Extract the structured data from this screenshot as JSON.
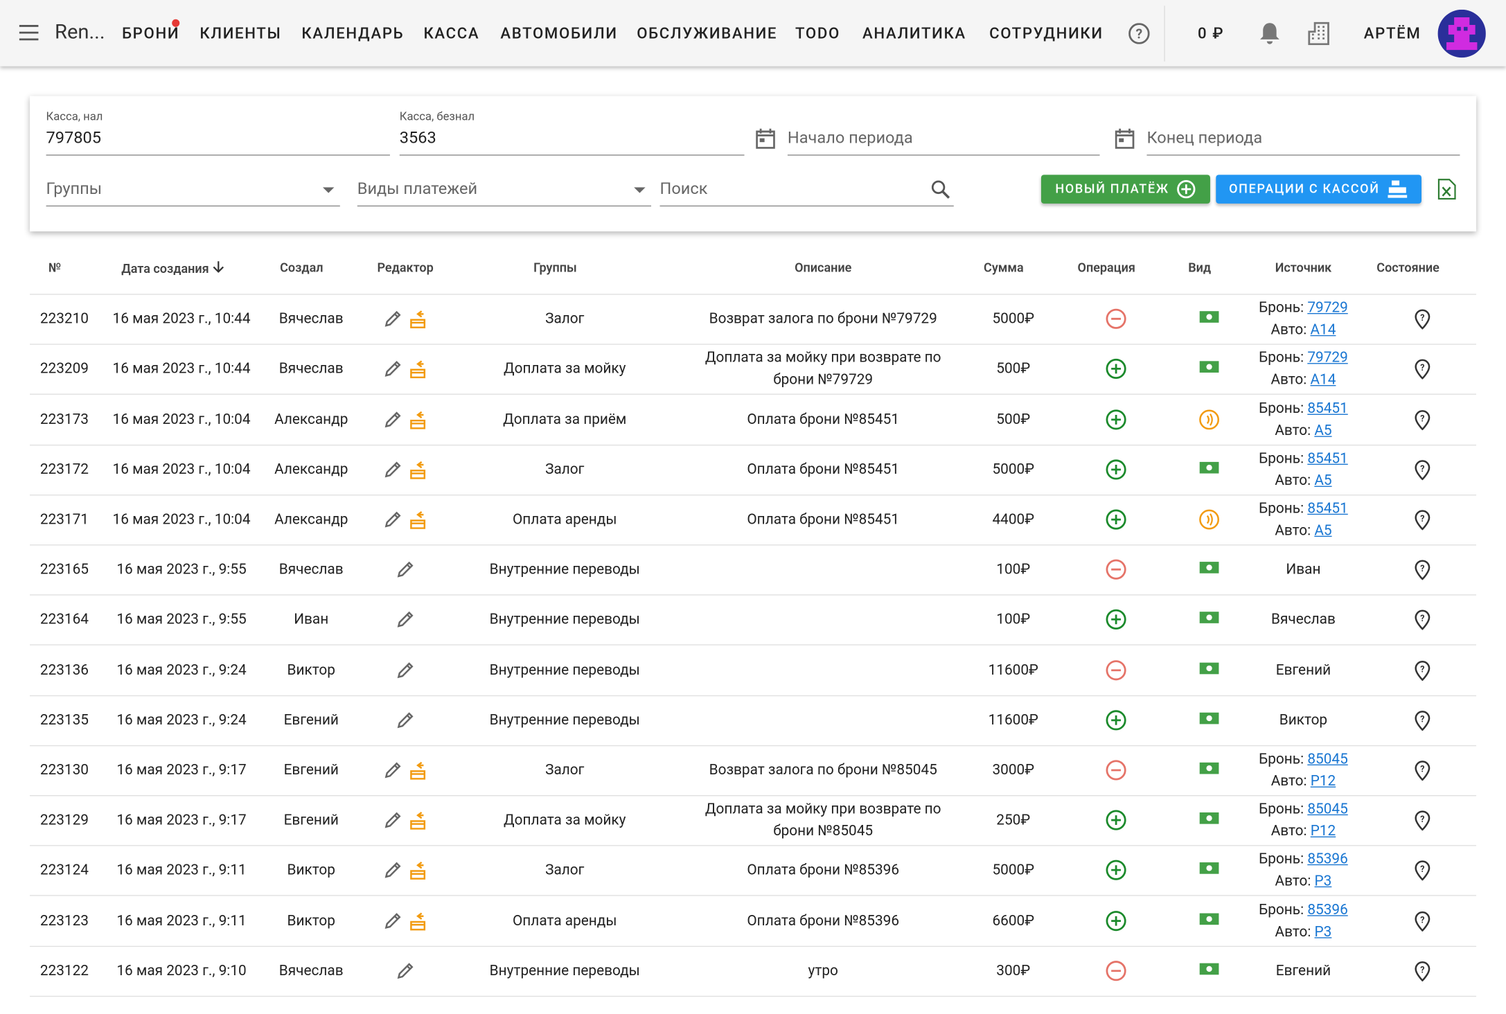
{
  "nav": {
    "brand": "Ren...",
    "items": [
      "БРОНИ",
      "КЛИЕНТЫ",
      "КАЛЕНДАРЬ",
      "КАССА",
      "АВТОМОБИЛИ",
      "ОБСЛУЖИВАНИЕ",
      "TODO",
      "АНАЛИТИКА",
      "СОТРУДНИКИ"
    ],
    "balance": "0 ₽",
    "user": "АРТЁМ"
  },
  "filters": {
    "cash": {
      "label": "Касса, нал",
      "value": "797805"
    },
    "cashless": {
      "label": "Касса, безнал",
      "value": "3563"
    },
    "period_start": "Начало периода",
    "period_end": "Конец периода",
    "groups": "Группы",
    "payment_types": "Виды платежей",
    "search": "Поиск"
  },
  "buttons": {
    "new_payment": "НОВЫЙ ПЛАТЁЖ",
    "cash_operations": "ОПЕРАЦИИ С КАССОЙ"
  },
  "table": {
    "columns": [
      "№",
      "Дата создания",
      "Создал",
      "Редактор",
      "Группы",
      "Описание",
      "Сумма",
      "Операция",
      "Вид",
      "Источник",
      "Состояние"
    ],
    "source_labels": {
      "booking": "Бронь:",
      "car": "Авто:"
    },
    "rows": [
      {
        "id": "223210",
        "date": "16 мая 2023 г., 10:44",
        "creator": "Вячеслав",
        "group": "Залог",
        "description": "Возврат залога по брони №79729",
        "sum": "5000₽",
        "operation": "minus",
        "kind": "cash",
        "source": {
          "booking": "79729",
          "car": "A14"
        }
      },
      {
        "id": "223209",
        "date": "16 мая 2023 г., 10:44",
        "creator": "Вячеслав",
        "group": "Доплата за мойку",
        "description": "Доплата за мойку при возврате по брони №79729",
        "sum": "500₽",
        "operation": "plus",
        "kind": "cash",
        "source": {
          "booking": "79729",
          "car": "A14"
        }
      },
      {
        "id": "223173",
        "date": "16 мая 2023 г., 10:04",
        "creator": "Александр",
        "group": "Доплата за приём",
        "description": "Оплата брони №85451",
        "sum": "500₽",
        "operation": "plus",
        "kind": "card",
        "source": {
          "booking": "85451",
          "car": "A5"
        }
      },
      {
        "id": "223172",
        "date": "16 мая 2023 г., 10:04",
        "creator": "Александр",
        "group": "Залог",
        "description": "Оплата брони №85451",
        "sum": "5000₽",
        "operation": "plus",
        "kind": "cash",
        "source": {
          "booking": "85451",
          "car": "A5"
        }
      },
      {
        "id": "223171",
        "date": "16 мая 2023 г., 10:04",
        "creator": "Александр",
        "group": "Оплата аренды",
        "description": "Оплата брони №85451",
        "sum": "4400₽",
        "operation": "plus",
        "kind": "card",
        "source": {
          "booking": "85451",
          "car": "A5"
        }
      },
      {
        "id": "223165",
        "date": "16 мая 2023 г., 9:55",
        "creator": "Вячеслав",
        "group": "Внутренние переводы",
        "sum": "100₽",
        "operation": "minus",
        "kind": "cash",
        "source": "Иван"
      },
      {
        "id": "223164",
        "date": "16 мая 2023 г., 9:55",
        "creator": "Иван",
        "group": "Внутренние переводы",
        "sum": "100₽",
        "operation": "plus",
        "kind": "cash",
        "source": "Вячеслав"
      },
      {
        "id": "223136",
        "date": "16 мая 2023 г., 9:24",
        "creator": "Виктор",
        "group": "Внутренние переводы",
        "sum": "11600₽",
        "operation": "minus",
        "kind": "cash",
        "source": "Евгений"
      },
      {
        "id": "223135",
        "date": "16 мая 2023 г., 9:24",
        "creator": "Евгений",
        "group": "Внутренние переводы",
        "sum": "11600₽",
        "operation": "plus",
        "kind": "cash",
        "source": "Виктор"
      },
      {
        "id": "223130",
        "date": "16 мая 2023 г., 9:17",
        "creator": "Евгений",
        "group": "Залог",
        "description": "Возврат залога по брони №85045",
        "sum": "3000₽",
        "operation": "minus",
        "kind": "cash",
        "source": {
          "booking": "85045",
          "car": "P12"
        }
      },
      {
        "id": "223129",
        "date": "16 мая 2023 г., 9:17",
        "creator": "Евгений",
        "group": "Доплата за мойку",
        "description": "Доплата за мойку при возврате по брони №85045",
        "sum": "250₽",
        "operation": "plus",
        "kind": "cash",
        "source": {
          "booking": "85045",
          "car": "P12"
        }
      },
      {
        "id": "223124",
        "date": "16 мая 2023 г., 9:11",
        "creator": "Виктор",
        "group": "Залог",
        "description": "Оплата брони №85396",
        "sum": "5000₽",
        "operation": "plus",
        "kind": "cash",
        "source": {
          "booking": "85396",
          "car": "P3"
        }
      },
      {
        "id": "223123",
        "date": "16 мая 2023 г., 9:11",
        "creator": "Виктор",
        "group": "Оплата аренды",
        "description": "Оплата брони №85396",
        "sum": "6600₽",
        "operation": "plus",
        "kind": "cash",
        "source": {
          "booking": "85396",
          "car": "P3"
        }
      },
      {
        "id": "223122",
        "date": "16 мая 2023 г., 9:10",
        "creator": "Вячеслав",
        "group": "Внутренние переводы",
        "description": "утро",
        "sum": "300₽",
        "operation": "minus",
        "kind": "cash",
        "source": "Евгений"
      }
    ]
  }
}
